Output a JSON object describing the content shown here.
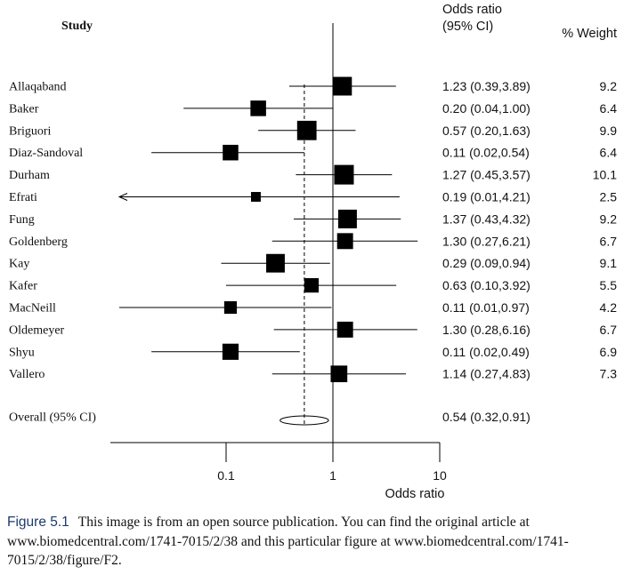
{
  "chart_data": {
    "type": "forest",
    "header": {
      "study": "Study",
      "odds_ratio_line1": "Odds ratio",
      "odds_ratio_line2": "(95% CI)",
      "weight": "% Weight"
    },
    "xlabel": "Odds ratio",
    "x_scale": "log",
    "xlim": [
      0.01,
      10
    ],
    "ticks": [
      {
        "value": 0.1,
        "label": "0.1"
      },
      {
        "value": 1,
        "label": "1"
      },
      {
        "value": 10,
        "label": "10"
      }
    ],
    "studies": [
      {
        "name": "Allaqaband",
        "or": 1.23,
        "lo": 0.39,
        "hi": 3.89,
        "text": "1.23 (0.39,3.89)",
        "weight": 9.2,
        "weight_label": "9.2"
      },
      {
        "name": "Baker",
        "or": 0.2,
        "lo": 0.04,
        "hi": 1.0,
        "text": "0.20 (0.04,1.00)",
        "weight": 6.4,
        "weight_label": "6.4"
      },
      {
        "name": "Briguori",
        "or": 0.57,
        "lo": 0.2,
        "hi": 1.63,
        "text": "0.57 (0.20,1.63)",
        "weight": 9.9,
        "weight_label": "9.9"
      },
      {
        "name": "Diaz-Sandoval",
        "or": 0.11,
        "lo": 0.02,
        "hi": 0.54,
        "text": "0.11 (0.02,0.54)",
        "weight": 6.4,
        "weight_label": "6.4"
      },
      {
        "name": "Durham",
        "or": 1.27,
        "lo": 0.45,
        "hi": 3.57,
        "text": "1.27 (0.45,3.57)",
        "weight": 10.1,
        "weight_label": "10.1"
      },
      {
        "name": "Efrati",
        "or": 0.19,
        "lo": 0.01,
        "hi": 4.21,
        "text": "0.19 (0.01,4.21)",
        "weight": 2.5,
        "weight_label": "2.5",
        "lower_truncated": true
      },
      {
        "name": "Fung",
        "or": 1.37,
        "lo": 0.43,
        "hi": 4.32,
        "text": "1.37 (0.43,4.32)",
        "weight": 9.2,
        "weight_label": "9.2"
      },
      {
        "name": "Goldenberg",
        "or": 1.3,
        "lo": 0.27,
        "hi": 6.21,
        "text": "1.30 (0.27,6.21)",
        "weight": 6.7,
        "weight_label": "6.7"
      },
      {
        "name": "Kay",
        "or": 0.29,
        "lo": 0.09,
        "hi": 0.94,
        "text": "0.29 (0.09,0.94)",
        "weight": 9.1,
        "weight_label": "9.1"
      },
      {
        "name": "Kafer",
        "or": 0.63,
        "lo": 0.1,
        "hi": 3.92,
        "text": "0.63 (0.10,3.92)",
        "weight": 5.5,
        "weight_label": "5.5"
      },
      {
        "name": "MacNeill",
        "or": 0.11,
        "lo": 0.01,
        "hi": 0.97,
        "text": "0.11 (0.01,0.97)",
        "weight": 4.2,
        "weight_label": "4.2"
      },
      {
        "name": "Oldemeyer",
        "or": 1.3,
        "lo": 0.28,
        "hi": 6.16,
        "text": "1.30 (0.28,6.16)",
        "weight": 6.7,
        "weight_label": "6.7"
      },
      {
        "name": "Shyu",
        "or": 0.11,
        "lo": 0.02,
        "hi": 0.49,
        "text": "0.11 (0.02,0.49)",
        "weight": 6.9,
        "weight_label": "6.9"
      },
      {
        "name": "Vallero",
        "or": 1.14,
        "lo": 0.27,
        "hi": 4.83,
        "text": "1.14 (0.27,4.83)",
        "weight": 7.3,
        "weight_label": "7.3"
      }
    ],
    "overall": {
      "label": "Overall (95% CI)",
      "or": 0.54,
      "lo": 0.32,
      "hi": 0.91,
      "text": "0.54 (0.32,0.91)"
    }
  },
  "caption": {
    "label": "Figure 5.1",
    "text": "This image is from an open source publication. You can find the original article at www.biomedcentral.com/1741-7015/2/38 and this particular figure at www.biomedcentral.com/1741-7015/2/38/figure/F2."
  }
}
